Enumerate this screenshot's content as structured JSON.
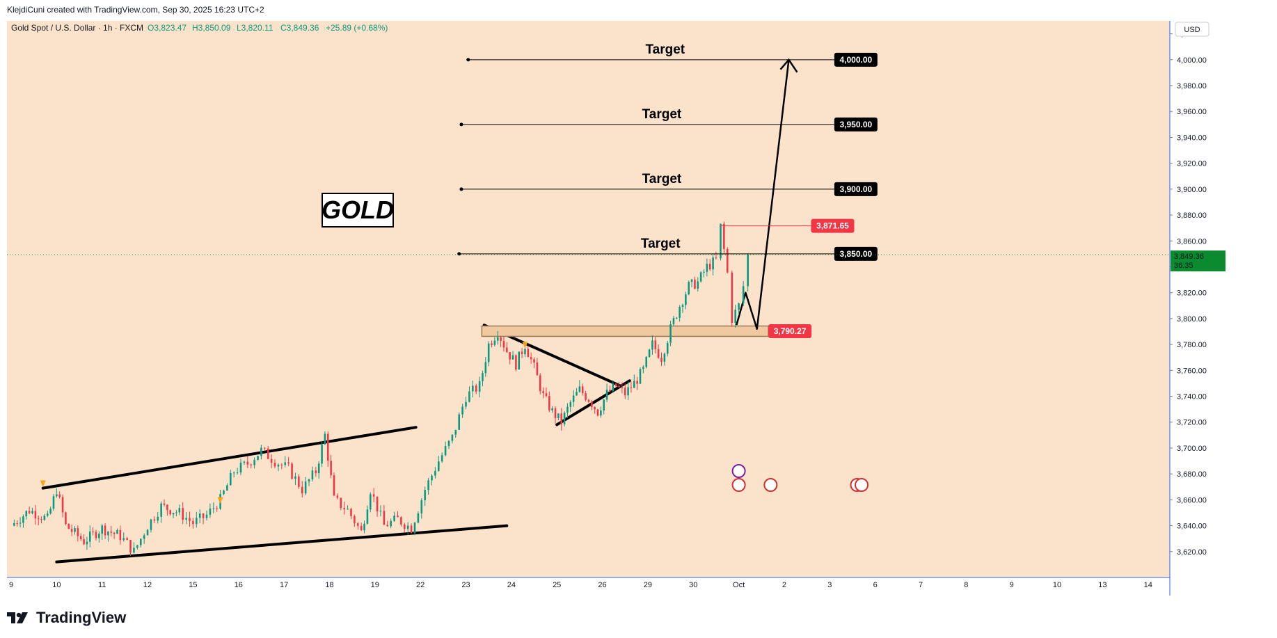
{
  "header": {
    "credit": "KlejdiCuni created with TradingView.com, Sep 30, 2025 16:23 UTC+2"
  },
  "legend": {
    "symbol": "Gold Spot / U.S. Dollar · 1h · FXCM",
    "open": "O3,823.47",
    "high": "H3,850.09",
    "low": "L3,820.11",
    "close": "C3,849.36",
    "change": "+25.89 (+0.68%)"
  },
  "currency": "USD",
  "gold_label": "GOLD",
  "targets": [
    {
      "label": "Target",
      "value": 3850,
      "price_label": "3,850.00"
    },
    {
      "label": "Target",
      "value": 3900,
      "price_label": "3,900.00"
    },
    {
      "label": "Target",
      "value": 3950,
      "price_label": "3,950.00"
    },
    {
      "label": "Target",
      "value": 4000,
      "price_label": "4,000.00"
    }
  ],
  "high_marker": {
    "value": 3871.65,
    "label": "3,871.65"
  },
  "support_zone": {
    "value": 3790.27,
    "label": "3,790.27"
  },
  "current_price": {
    "value": 3849.36,
    "label": "3,849.36",
    "countdown": "36:35"
  },
  "colors": {
    "background": "#fbe3cb",
    "up": "#089981",
    "down": "#f23645",
    "legend_green": "#089981",
    "label_black": "#000000",
    "label_red": "#f23645",
    "price_green": "#0b8a2f",
    "axis_line": "#2962ff"
  },
  "footer": {
    "brand": "TradingView"
  },
  "chart_data": {
    "type": "candlestick",
    "title": "Gold Spot / U.S. Dollar · 1h · FXCM",
    "ylim": [
      3600,
      4030
    ],
    "y_ticks": [
      3620,
      3640,
      3660,
      3680,
      3700,
      3720,
      3740,
      3760,
      3780,
      3800,
      3820,
      3840,
      3860,
      3880,
      3900,
      3920,
      3940,
      3960,
      3980,
      4000,
      4020
    ],
    "x_ticks": [
      "9",
      "10",
      "11",
      "12",
      "15",
      "16",
      "17",
      "18",
      "19",
      "22",
      "23",
      "24",
      "25",
      "26",
      "29",
      "30",
      "Oct",
      "2",
      "3",
      "6",
      "7",
      "8",
      "9",
      "10",
      "13",
      "14"
    ],
    "x_tick_index": [
      0,
      1,
      2,
      3,
      4,
      5,
      6,
      7,
      8,
      9,
      10,
      11,
      12,
      13,
      14,
      15,
      16,
      17,
      18,
      19,
      20,
      21,
      22,
      23,
      24,
      25
    ],
    "price_path": [
      [
        0.0,
        3640
      ],
      [
        0.4,
        3652
      ],
      [
        0.8,
        3645
      ],
      [
        1.0,
        3668
      ],
      [
        1.2,
        3640
      ],
      [
        1.6,
        3628
      ],
      [
        2.0,
        3638
      ],
      [
        2.4,
        3632
      ],
      [
        2.7,
        3620
      ],
      [
        3.0,
        3640
      ],
      [
        3.3,
        3655
      ],
      [
        3.7,
        3650
      ],
      [
        4.0,
        3642
      ],
      [
        4.3,
        3648
      ],
      [
        4.6,
        3660
      ],
      [
        4.9,
        3682
      ],
      [
        5.2,
        3688
      ],
      [
        5.5,
        3698
      ],
      [
        5.8,
        3690
      ],
      [
        6.1,
        3684
      ],
      [
        6.4,
        3668
      ],
      [
        6.7,
        3682
      ],
      [
        6.9,
        3710
      ],
      [
        7.1,
        3660
      ],
      [
        7.4,
        3652
      ],
      [
        7.7,
        3635
      ],
      [
        7.9,
        3668
      ],
      [
        8.2,
        3640
      ],
      [
        8.5,
        3645
      ],
      [
        8.8,
        3638
      ],
      [
        9.1,
        3668
      ],
      [
        9.4,
        3690
      ],
      [
        9.7,
        3708
      ],
      [
        10.0,
        3740
      ],
      [
        10.3,
        3748
      ],
      [
        10.5,
        3780
      ],
      [
        10.7,
        3790
      ],
      [
        10.9,
        3775
      ],
      [
        11.1,
        3765
      ],
      [
        11.3,
        3780
      ],
      [
        11.5,
        3762
      ],
      [
        11.7,
        3740
      ],
      [
        11.9,
        3728
      ],
      [
        12.1,
        3720
      ],
      [
        12.3,
        3735
      ],
      [
        12.5,
        3745
      ],
      [
        12.7,
        3738
      ],
      [
        12.9,
        3728
      ],
      [
        13.1,
        3742
      ],
      [
        13.3,
        3748
      ],
      [
        13.5,
        3742
      ],
      [
        13.7,
        3750
      ],
      [
        13.9,
        3760
      ],
      [
        14.1,
        3780
      ],
      [
        14.3,
        3770
      ],
      [
        14.5,
        3792
      ],
      [
        14.7,
        3810
      ],
      [
        14.9,
        3825
      ],
      [
        15.1,
        3828
      ],
      [
        15.3,
        3840
      ],
      [
        15.5,
        3845
      ],
      [
        15.6,
        3871
      ],
      [
        15.75,
        3835
      ],
      [
        15.85,
        3800
      ],
      [
        16.0,
        3810
      ],
      [
        16.1,
        3825
      ],
      [
        16.2,
        3849
      ]
    ],
    "drawings": {
      "upper_channel": [
        [
          0.7,
          3669
        ],
        [
          8.9,
          3716
        ]
      ],
      "lower_channel": [
        [
          1.0,
          3612
        ],
        [
          10.9,
          3640
        ]
      ],
      "triangle_upper": [
        [
          10.4,
          3795
        ],
        [
          13.4,
          3748
        ]
      ],
      "triangle_lower": [
        [
          12.0,
          3718
        ],
        [
          13.6,
          3752
        ]
      ],
      "projection": [
        [
          15.95,
          3795
        ],
        [
          16.15,
          3820
        ],
        [
          16.4,
          3792
        ],
        [
          17.1,
          4000
        ]
      ],
      "targets_x_start": [
        9.85,
        9.9,
        9.9,
        10.05
      ],
      "targets_x_end": [
        18.1,
        18.1,
        18.1,
        18.1
      ]
    }
  }
}
